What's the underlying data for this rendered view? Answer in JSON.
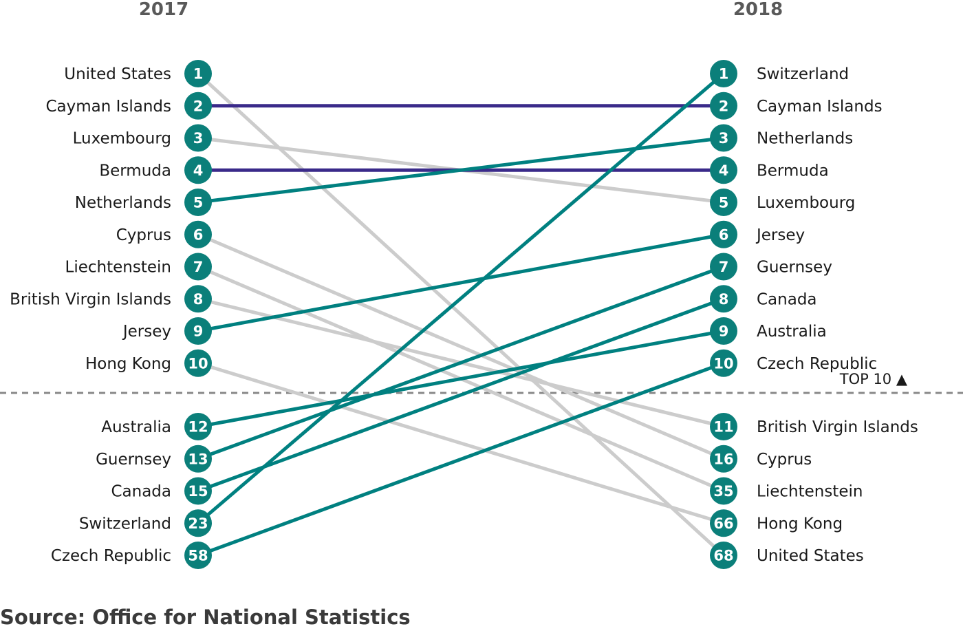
{
  "chart_data": {
    "type": "slope",
    "columns": [
      "2017",
      "2018"
    ],
    "top_label": "TOP 10 ▲",
    "colors": {
      "rise": "#008080",
      "same": "#3a2a8a",
      "fall": "#cccccc",
      "marker": "#0b7f7a"
    },
    "left": [
      {
        "country": "United States",
        "rank": 1
      },
      {
        "country": "Cayman Islands",
        "rank": 2
      },
      {
        "country": "Luxembourg",
        "rank": 3
      },
      {
        "country": "Bermuda",
        "rank": 4
      },
      {
        "country": "Netherlands",
        "rank": 5
      },
      {
        "country": "Cyprus",
        "rank": 6
      },
      {
        "country": "Liechtenstein",
        "rank": 7
      },
      {
        "country": "British Virgin Islands",
        "rank": 8
      },
      {
        "country": "Jersey",
        "rank": 9
      },
      {
        "country": "Hong Kong",
        "rank": 10
      },
      {
        "country": "Australia",
        "rank": 12
      },
      {
        "country": "Guernsey",
        "rank": 13
      },
      {
        "country": "Canada",
        "rank": 15
      },
      {
        "country": "Switzerland",
        "rank": 23
      },
      {
        "country": "Czech Republic",
        "rank": 58
      }
    ],
    "right": [
      {
        "country": "Switzerland",
        "rank": 1
      },
      {
        "country": "Cayman Islands",
        "rank": 2
      },
      {
        "country": "Netherlands",
        "rank": 3
      },
      {
        "country": "Bermuda",
        "rank": 4
      },
      {
        "country": "Luxembourg",
        "rank": 5
      },
      {
        "country": "Jersey",
        "rank": 6
      },
      {
        "country": "Guernsey",
        "rank": 7
      },
      {
        "country": "Canada",
        "rank": 8
      },
      {
        "country": "Australia",
        "rank": 9
      },
      {
        "country": "Czech Republic",
        "rank": 10
      },
      {
        "country": "British Virgin Islands",
        "rank": 11
      },
      {
        "country": "Cyprus",
        "rank": 16
      },
      {
        "country": "Liechtenstein",
        "rank": 35
      },
      {
        "country": "Hong Kong",
        "rank": 66
      },
      {
        "country": "United States",
        "rank": 68
      }
    ]
  },
  "source": "Source: Office for National Statistics"
}
